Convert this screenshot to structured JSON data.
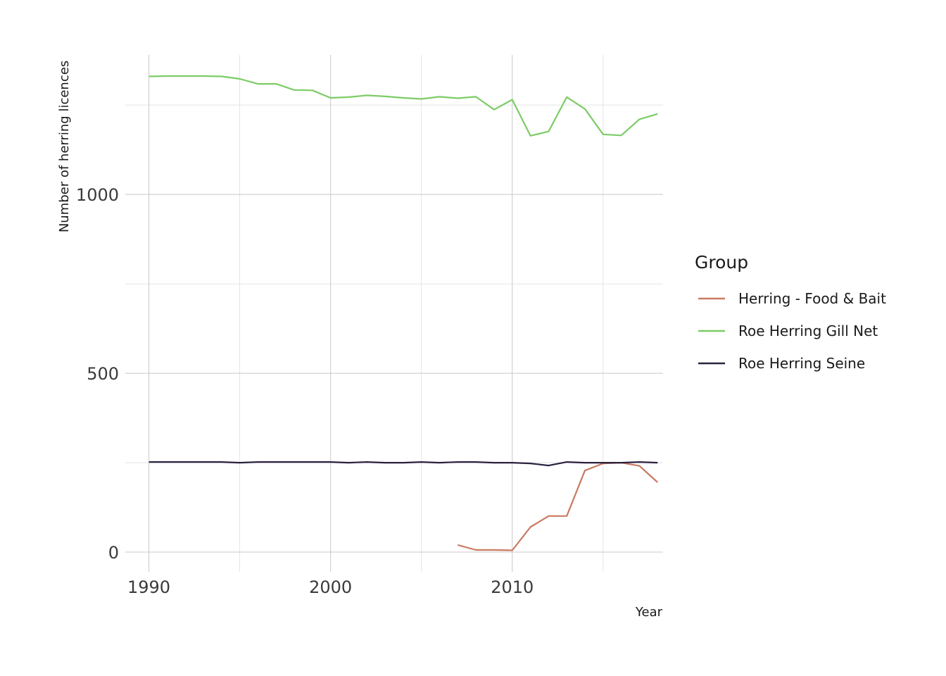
{
  "chart_data": {
    "type": "line",
    "title": "",
    "xlabel": "Year",
    "ylabel": "Number of herring licences",
    "xlim": [
      1988.7,
      2018.3
    ],
    "ylim": [
      -55,
      1390
    ],
    "x_ticks": [
      1990,
      2000,
      2010
    ],
    "x_minor": [
      1995,
      2005,
      2015
    ],
    "y_ticks": [
      0,
      500,
      1000
    ],
    "y_minor": [
      250,
      750,
      1250
    ],
    "grid": true,
    "legend": {
      "title": "Group",
      "position": "right"
    },
    "series": [
      {
        "name": "Herring - Food & Bait",
        "color": "#c97a62",
        "x": [
          2007,
          2008,
          2009,
          2010,
          2011,
          2012,
          2013,
          2014,
          2015,
          2016,
          2017,
          2018
        ],
        "y": [
          20,
          6,
          6,
          5,
          70,
          101,
          101,
          228,
          248,
          250,
          241,
          195
        ]
      },
      {
        "name": "Roe Herring Gill Net",
        "color": "#7ccc66",
        "x": [
          1990,
          1991,
          1992,
          1993,
          1994,
          1995,
          1996,
          1997,
          1998,
          1999,
          2000,
          2001,
          2002,
          2003,
          2004,
          2005,
          2006,
          2007,
          2008,
          2009,
          2010,
          2011,
          2012,
          2013,
          2014,
          2015,
          2016,
          2017,
          2018
        ],
        "y": [
          1330,
          1331,
          1331,
          1331,
          1330,
          1323,
          1309,
          1309,
          1292,
          1291,
          1270,
          1272,
          1277,
          1274,
          1270,
          1267,
          1273,
          1269,
          1273,
          1237,
          1265,
          1164,
          1176,
          1272,
          1239,
          1168,
          1165,
          1210,
          1225
        ]
      },
      {
        "name": "Roe Herring Seine",
        "color": "#2b2140",
        "x": [
          1990,
          1991,
          1992,
          1993,
          1994,
          1995,
          1996,
          1997,
          1998,
          1999,
          2000,
          2001,
          2002,
          2003,
          2004,
          2005,
          2006,
          2007,
          2008,
          2009,
          2010,
          2011,
          2012,
          2013,
          2014,
          2015,
          2016,
          2017,
          2018
        ],
        "y": [
          252,
          252,
          252,
          252,
          252,
          250,
          252,
          252,
          252,
          252,
          252,
          250,
          252,
          250,
          250,
          252,
          250,
          252,
          252,
          250,
          250,
          248,
          242,
          252,
          250,
          250,
          250,
          252,
          250
        ]
      }
    ]
  }
}
